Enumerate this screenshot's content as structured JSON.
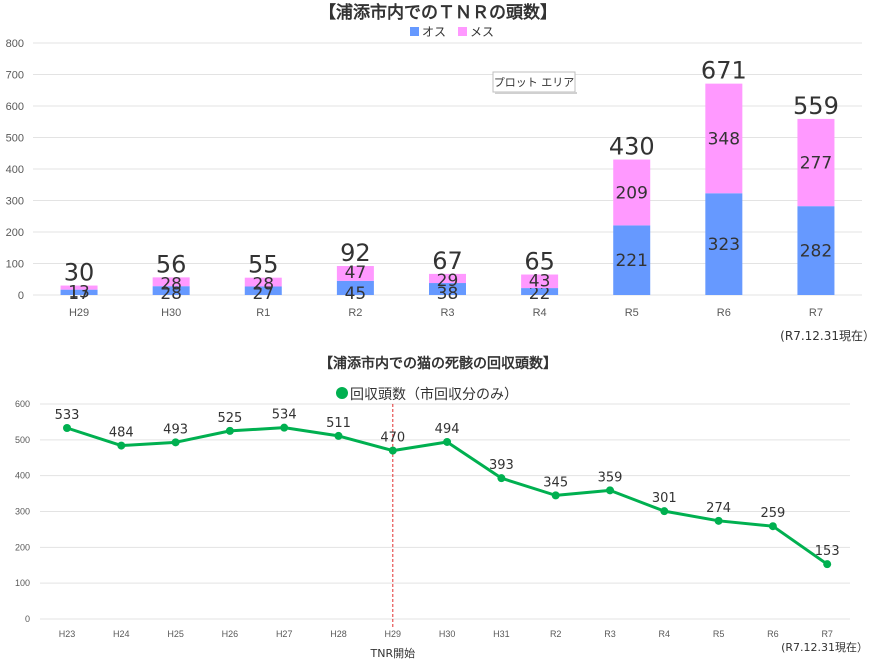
{
  "chart_data": [
    {
      "type": "bar",
      "stacked": true,
      "title": "【浦添市内でのＴＮＲの頭数】",
      "categories": [
        "H29",
        "H30",
        "R1",
        "R2",
        "R3",
        "R4",
        "R5",
        "R6",
        "R7"
      ],
      "series": [
        {
          "name": "オス",
          "color": "#6699ff",
          "values": [
            17,
            28,
            27,
            45,
            38,
            22,
            221,
            323,
            282
          ]
        },
        {
          "name": "メス",
          "color": "#ff99ff",
          "values": [
            13,
            28,
            28,
            47,
            29,
            43,
            209,
            348,
            277
          ]
        }
      ],
      "totals": [
        30,
        56,
        55,
        92,
        67,
        65,
        430,
        671,
        559
      ],
      "ylim": [
        0,
        800
      ],
      "yticks": [
        0,
        100,
        200,
        300,
        400,
        500,
        600,
        700,
        800
      ],
      "legend_position": "top",
      "tooltip": "プロット エリア",
      "footnote": "(R7.12.31現在）"
    },
    {
      "type": "line",
      "title": "【浦添市内での猫の死骸の回収頭数】",
      "categories": [
        "H23",
        "H24",
        "H25",
        "H26",
        "H27",
        "H28",
        "H29",
        "H30",
        "H31",
        "R2",
        "R3",
        "R4",
        "R5",
        "R6",
        "R7"
      ],
      "series": [
        {
          "name": "回収頭数（市回収分のみ）",
          "color": "#00b050",
          "values": [
            533,
            484,
            493,
            525,
            534,
            511,
            470,
            494,
            393,
            345,
            359,
            301,
            274,
            259,
            153
          ]
        }
      ],
      "ylim": [
        0,
        600
      ],
      "yticks": [
        0,
        100,
        200,
        300,
        400,
        500,
        600
      ],
      "legend_position": "top",
      "marker_line": {
        "category": "H29",
        "label": "TNR開始",
        "color": "#e03030"
      },
      "footnote": "(R7.12.31現在）"
    }
  ]
}
